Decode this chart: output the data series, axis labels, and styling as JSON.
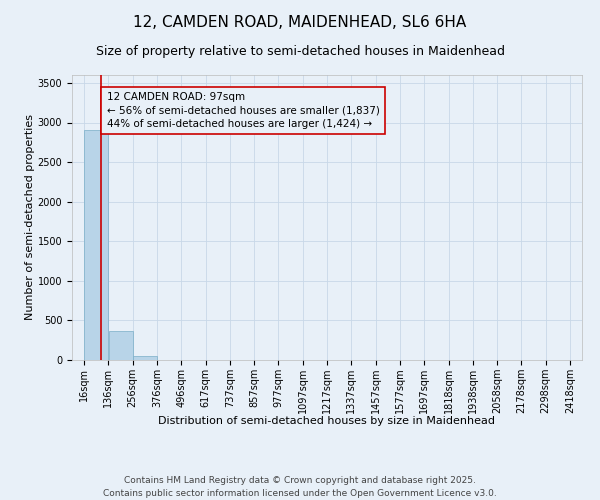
{
  "title_line1": "12, CAMDEN ROAD, MAIDENHEAD, SL6 6HA",
  "title_line2": "Size of property relative to semi-detached houses in Maidenhead",
  "xlabel": "Distribution of semi-detached houses by size in Maidenhead",
  "ylabel": "Number of semi-detached properties",
  "bin_edges": [
    16,
    136,
    256,
    376,
    496,
    617,
    737,
    857,
    977,
    1097,
    1217,
    1337,
    1457,
    1577,
    1697,
    1818,
    1938,
    2058,
    2178,
    2298,
    2418
  ],
  "bar_heights": [
    2900,
    370,
    50,
    0,
    0,
    0,
    0,
    0,
    0,
    0,
    0,
    0,
    0,
    0,
    0,
    0,
    0,
    0,
    0,
    0
  ],
  "bar_color": "#b8d4e8",
  "bar_edge_color": "#7aaec8",
  "grid_color": "#c8d8e8",
  "background_color": "#e8f0f8",
  "property_sqm": 97,
  "red_line_color": "#cc0000",
  "annotation_text": "12 CAMDEN ROAD: 97sqm\n← 56% of semi-detached houses are smaller (1,837)\n44% of semi-detached houses are larger (1,424) →",
  "annotation_box_color": "#cc0000",
  "annotation_text_color": "#000000",
  "ylim": [
    0,
    3600
  ],
  "yticks": [
    0,
    500,
    1000,
    1500,
    2000,
    2500,
    3000,
    3500
  ],
  "footer_text": "Contains HM Land Registry data © Crown copyright and database right 2025.\nContains public sector information licensed under the Open Government Licence v3.0.",
  "title_fontsize": 11,
  "subtitle_fontsize": 9,
  "axis_label_fontsize": 8,
  "tick_label_fontsize": 7,
  "footer_fontsize": 6.5,
  "annotation_fontsize": 7.5
}
